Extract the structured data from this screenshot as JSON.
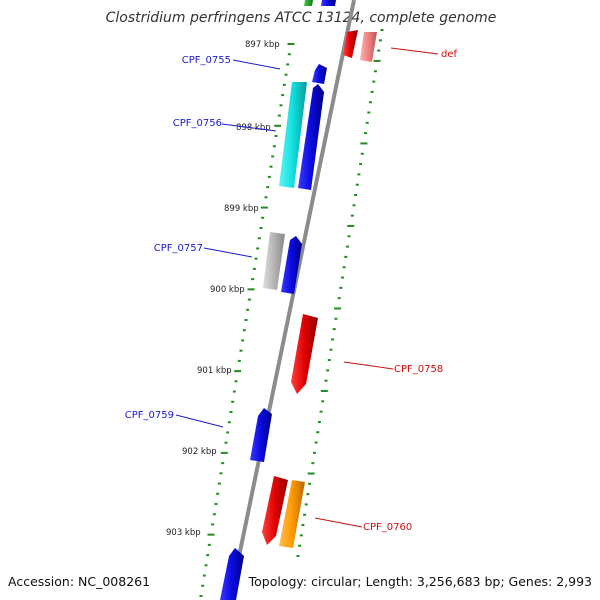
{
  "title": "Clostridium perfringens ATCC 13124, complete genome",
  "footer": {
    "accession": "Accession: NC_008261",
    "topology": "Topology: circular; Length: 3,256,683 bp; Genes: 2,993"
  },
  "ticks": [
    "897 kbp",
    "898 kbp",
    "899 kbp",
    "900 kbp",
    "901 kbp",
    "902 kbp",
    "903 kbp"
  ],
  "genes": [
    {
      "label": "CPF_0755",
      "strand": "reverse",
      "color": "#1a1acc"
    },
    {
      "label": "CPF_0756",
      "strand": "reverse",
      "color": "#1a1acc"
    },
    {
      "label": "CPF_0757",
      "strand": "reverse",
      "color": "#1a1acc"
    },
    {
      "label": "CPF_0759",
      "strand": "reverse",
      "color": "#1a1acc"
    },
    {
      "label": "def",
      "strand": "forward",
      "color": "#cc1111"
    },
    {
      "label": "CPF_0758",
      "strand": "forward",
      "color": "#cc1111"
    },
    {
      "label": "CPF_0760",
      "strand": "forward",
      "color": "#cc1111"
    }
  ],
  "colors": {
    "backbone": "#8c8c8c",
    "tick": "#228b22",
    "reverse_label": "#1a1acc",
    "forward_label": "#cc1111",
    "cds_blue": "#1010e0",
    "cds_red": "#e01010",
    "cds_cyan": "#18e0e0",
    "cds_gray": "#b8b8b8",
    "cds_orange": "#ff9a10",
    "cds_pink": "#f08a8a",
    "cds_green": "#22aa22"
  }
}
